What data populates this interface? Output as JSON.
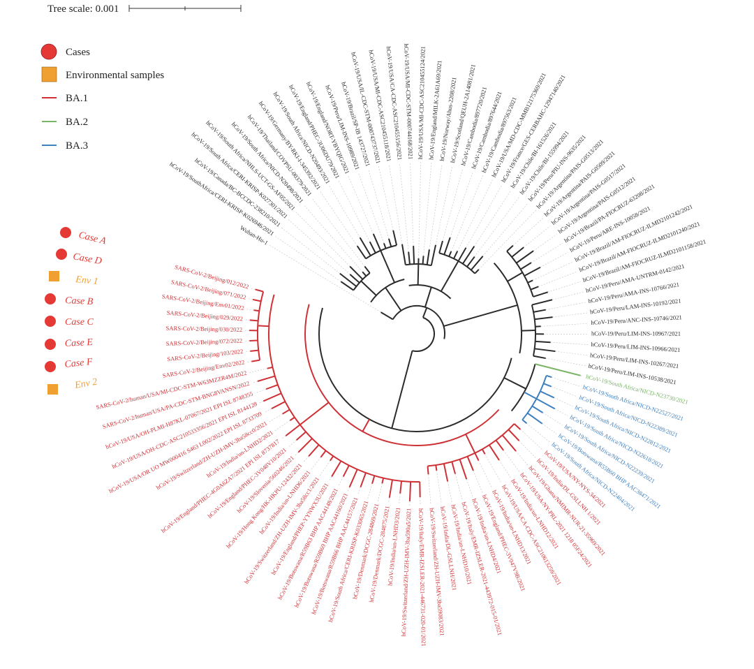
{
  "scale": {
    "label": "Tree scale: 0.001"
  },
  "legend": {
    "cases": "Cases",
    "environmental": "Environmental samples",
    "ba1": "BA.1",
    "ba2": "BA.2",
    "ba3": "BA.3"
  },
  "colors": {
    "none": "#2b2b2b",
    "BA.1": "#cf3035",
    "BA.2": "#7ab566",
    "BA.3": "#3d7fbf",
    "case": "#e53935",
    "env": "#f0a030"
  },
  "sample_legend": {
    "case_a": "Case A",
    "case_d": "Case D",
    "env_1": "Env 1",
    "case_b": "Case B",
    "case_c": "Case C",
    "case_e": "Case E",
    "case_f": "Case F",
    "env_2": "Env 2"
  },
  "leaves": [
    {
      "label": "Wuhan-Hu-1",
      "lineage": "none"
    },
    {
      "label": "hCoV-19/SouthAfrica/CERI-KRISP-K026946/2021",
      "lineage": "none"
    },
    {
      "label": "hCoV-19/Canada/BC-BCCDC-238210/2021",
      "lineage": "none"
    },
    {
      "label": "hCoV-19/South Africa/CERI-KRISP-K027301/2021",
      "lineage": "none"
    },
    {
      "label": "hCoV-19/South Africa/NHLS-UCT-GS-AF05/2021",
      "lineage": "none"
    },
    {
      "label": "hCoV-19/South Africa/NICD-N20498/2021",
      "lineage": "none"
    },
    {
      "label": "hCoV-19/Thailand/COVPSU-00379/2021",
      "lineage": "none"
    },
    {
      "label": "hCoV-19/Germany/BY-RKI-I-345392/2021",
      "lineage": "none"
    },
    {
      "label": "hCoV-19/South Africa/NICD-N20493/2021",
      "lineage": "none"
    },
    {
      "label": "hCoV-19/England/PHEC-3U06DU79/2021",
      "lineage": "none"
    },
    {
      "label": "hCoV-19/England/NORT-YBYQIG/2021",
      "lineage": "none"
    },
    {
      "label": "hCoV-19/Peru/LIM-INS-10989/2021",
      "lineage": "none"
    },
    {
      "label": "hCoV-19/Brazil/SP-IB 143727/2021",
      "lineage": "none"
    },
    {
      "label": "hCoV-19/USA/IL-CDC-STM-000743737/2021",
      "lineage": "none"
    },
    {
      "label": "hCoV-19/USA/MI-CDC-ASC210455118/2021",
      "lineage": "none"
    },
    {
      "label": "hCoV-19/USA/CA-CDC-ASC210455156/2021",
      "lineage": "none"
    },
    {
      "label": "hCoV-19/USA/MI-CDC-STM-000744168/2021",
      "lineage": "none"
    },
    {
      "label": "hCoV-19/USA/MI-CDC-ASC210455124/2021",
      "lineage": "none"
    },
    {
      "label": "hCoV-19/England/MILK-2A61A69/2021",
      "lineage": "none"
    },
    {
      "label": "hCoV-19/Norway/Ahus-2208/2021",
      "lineage": "none"
    },
    {
      "label": "hCoV-19/Scotland/QEUH-2A14081/2021",
      "lineage": "none"
    },
    {
      "label": "hCoV-19/Cambodia/897720/2021",
      "lineage": "none"
    },
    {
      "label": "hCoV-19/Cambodia/897644/2021",
      "lineage": "none"
    },
    {
      "label": "hCoV-19/Cambodia/897563/2021",
      "lineage": "none"
    },
    {
      "label": "hCoV-19/USA/MD-CDC-MMB12175369/2021",
      "lineage": "none"
    },
    {
      "label": "hCoV-19/France/GES-CERBAHC-12947140/2021",
      "lineage": "none"
    },
    {
      "label": "hCoV-19/Chile/BI-161526/2021",
      "lineage": "none"
    },
    {
      "label": "hCoV-19/Chile/BI-155994/2021",
      "lineage": "none"
    },
    {
      "label": "hCoV-19/Peru/PIU-INS-9635/2021",
      "lineage": "none"
    },
    {
      "label": "hCoV-19/Argentina/PAIS-G0513/2021",
      "lineage": "none"
    },
    {
      "label": "hCoV-19/Argentina/PAIS-G0509/2021",
      "lineage": "none"
    },
    {
      "label": "hCoV-19/Argentina/PAIS-G0517/2021",
      "lineage": "none"
    },
    {
      "label": "hCoV-19/Argentina/PAIS-G0512/2021",
      "lineage": "none"
    },
    {
      "label": "hCoV-19/Brazil/PA-FIOCRUZ-63208/2021",
      "lineage": "none"
    },
    {
      "label": "hCoV-19/Peru/ARE-INS-10058/2021",
      "lineage": "none"
    },
    {
      "label": "hCoV-19/Brazil/AM-FIOCRUZ-ILMD2101242/2021",
      "lineage": "none"
    },
    {
      "label": "hCoV-19/Brazil/AM-FIOCRUZ-ILMD2101240/2021",
      "lineage": "none"
    },
    {
      "label": "hCoV-19/Brazil/AM-FIOCRUZ-ILMD2101158/2021",
      "lineage": "none"
    },
    {
      "label": "hCoV-19/Peru/AMA-UNTRM-0142/2021",
      "lineage": "none"
    },
    {
      "label": "hCoV-19/Peru/AMA-INS-10766/2021",
      "lineage": "none"
    },
    {
      "label": "hCoV-19/Peru/LAM-INS-10192/2021",
      "lineage": "none"
    },
    {
      "label": "hCoV-19/Peru/ANC-INS-10746/2021",
      "lineage": "none"
    },
    {
      "label": "hCoV-19/Peru/LIM-INS-10967/2021",
      "lineage": "none"
    },
    {
      "label": "hCoV-19/Peru/LIM-INS-10966/2021",
      "lineage": "none"
    },
    {
      "label": "hCoV-19/Peru/LIM-INS-10267/2021",
      "lineage": "none"
    },
    {
      "label": "hCoV-19/Peru/LIM-INS-10538/2021",
      "lineage": "none"
    },
    {
      "label": "hCoV-19/South Africa/NICD-N23730/2021",
      "lineage": "BA.2"
    },
    {
      "label": "hCoV-19/South Africa/NICD-N22527/2021",
      "lineage": "BA.3"
    },
    {
      "label": "hCoV-19/South Africa/NICD-N22389/2021",
      "lineage": "BA.3"
    },
    {
      "label": "hCoV-19/South Africa/NICD-N22812/2021",
      "lineage": "BA.3"
    },
    {
      "label": "hCoV-19/South Africa/NICD-N22618/2021",
      "lineage": "BA.3"
    },
    {
      "label": "hCoV-19/South Africa/NICD-N22239/2021",
      "lineage": "BA.3"
    },
    {
      "label": "hCoV-19/Botswana/R55B60 BHP AAC38471/2021",
      "lineage": "BA.3"
    },
    {
      "label": "hCoV-19/South Africa/NICD-N22404/2021",
      "lineage": "BA.3"
    },
    {
      "label": "hCoV-19/USA/NY-NYS-34/2021",
      "lineage": "BA.1"
    },
    {
      "label": "hCoV-19/India/DL-GSLLNH 1/2021",
      "lineage": "BA.1"
    },
    {
      "label": "hCoV-19/Ghana/NMIMR-NUR-21-35969/2021",
      "lineage": "BA.1"
    },
    {
      "label": "hCoV-19/USA/NY-PRL-2021 1218 05F24/2021",
      "lineage": "BA.1"
    },
    {
      "label": "hCoV-19/India/un-LNHD12/2021",
      "lineage": "BA.1"
    },
    {
      "label": "hCoV-19/USA/CA-CDC-ASC210613259/2021",
      "lineage": "BA.1"
    },
    {
      "label": "hCoV-19/India/un-LNHD13/2021",
      "lineage": "BA.1"
    },
    {
      "label": "hCoV-19/England/PHEC-3V047V9B/2021",
      "lineage": "BA.1"
    },
    {
      "label": "hCoV-19/India/un-LNHD4/2021",
      "lineage": "BA.1"
    },
    {
      "label": "hCoV-19/Italy/EMR-IZSLER-2021-443972-015-01/2021",
      "lineage": "BA.1"
    },
    {
      "label": "hCoV-19/India/un-LNHD10/2021",
      "lineage": "BA.1"
    },
    {
      "label": "hCoV-19/India/DL-GSLLNH/2021",
      "lineage": "BA.1"
    },
    {
      "label": "hCoV-19/Switzerland/ZH-UZH-IMV-3ba59083/2021",
      "lineage": "BA.1"
    },
    {
      "label": "hCoV-19/Italy/EMR-IZSLER-2021-446731-020-01/2021",
      "lineage": "BA.1"
    },
    {
      "label": "hCoV-19/Switzerland/ZH-UZH-IMV-3ba590a5/2021",
      "lineage": "BA.1"
    },
    {
      "label": "hCoV-19/India/un-LNHD3/2021",
      "lineage": "BA.1"
    },
    {
      "label": "hCoV-19/Denmark/DCGC-284875/2021",
      "lineage": "BA.1"
    },
    {
      "label": "hCoV-19/Denmark/DCGC-284869/2021",
      "lineage": "BA.1"
    },
    {
      "label": "hCoV-19/South Africa/CERI-KRISP-K033065/2021",
      "lineage": "BA.1"
    },
    {
      "label": "hCoV-19/Botswana/R59B66 BHP AAC44157/2021",
      "lineage": "BA.1"
    },
    {
      "label": "hCoV-19/Botswana/R59B69 BHP AAC44160/2021",
      "lineage": "BA.1"
    },
    {
      "label": "hCoV-19/Botswana/R59B63 BHP AAC44148/2021",
      "lineage": "BA.1"
    },
    {
      "label": "hCoV-19/England/PHEP-YYNWX3U/2021",
      "lineage": "BA.1"
    },
    {
      "label": "hCoV-19/Switzerland/ZH-UZH-IMV-3ba58cc1/2021",
      "lineage": "BA.1"
    },
    {
      "label": "hCoV-19/India/un-LNHD6/2021",
      "lineage": "BA.1"
    },
    {
      "label": "hCoV-19/Hong Kong/HK-HKPU-12432/2021",
      "lineage": "BA.1"
    },
    {
      "label": "hCoV-19/Slovenia/560246/2021",
      "lineage": "BA.1"
    },
    {
      "label": "hCoV-19/England/PHEC-3V048V10/2021",
      "lineage": "BA.1"
    },
    {
      "label": "hCoV-19/England/PHEC-4G0A6ZA7/2021 EPI ISL 8737817",
      "lineage": "BA.1"
    },
    {
      "label": "hCoV-19/India/un-LNHD2/2021",
      "lineage": "BA.1"
    },
    {
      "label": "hCoV-19/Switzerland/ZH-UZH-IMV-3ba58cc0/2021",
      "lineage": "BA.1"
    },
    {
      "label": "hCoV-19/USA/OR UO MW000416 S463 L002/2022 EPI ISL 8733709",
      "lineage": "BA.1"
    },
    {
      "label": "hCoV-19/USA/OH-CDC-ASC210533356/2021 EPI ISL 8144128",
      "lineage": "BA.1"
    },
    {
      "label": "hCoV-19/USA/OH-PLMI-H87KL-07067/2021 EPI ISL 8748355",
      "lineage": "BA.1"
    },
    {
      "label": "SARS-CoV-2/human/USA/PA-CDC-STM-BNG8VANSN/2022",
      "lineage": "BA.1"
    },
    {
      "label": "SARS-CoV-2/human/USA/MI-CDC-STM-W63MZZR4M/2022",
      "lineage": "BA.1"
    },
    {
      "label": "SARS-CoV-2/Beijing/Env02/2022",
      "lineage": "BA.1"
    },
    {
      "label": "SARS-CoV-2/Beijing/103/2022",
      "lineage": "BA.1"
    },
    {
      "label": "SARS-CoV-2/Beijing/072/2022",
      "lineage": "BA.1"
    },
    {
      "label": "SARS-CoV-2/Beijing/030/2022",
      "lineage": "BA.1"
    },
    {
      "label": "SARS-CoV-2/Beijing/029/2022",
      "lineage": "BA.1"
    },
    {
      "label": "SARS-CoV-2/Beijing/Env01/2022",
      "lineage": "BA.1"
    },
    {
      "label": "SARS-CoV-2/Beijing/071/2022",
      "lineage": "BA.1"
    },
    {
      "label": "SARS-CoV-2/Beijing/012/2022",
      "lineage": "BA.1"
    }
  ]
}
